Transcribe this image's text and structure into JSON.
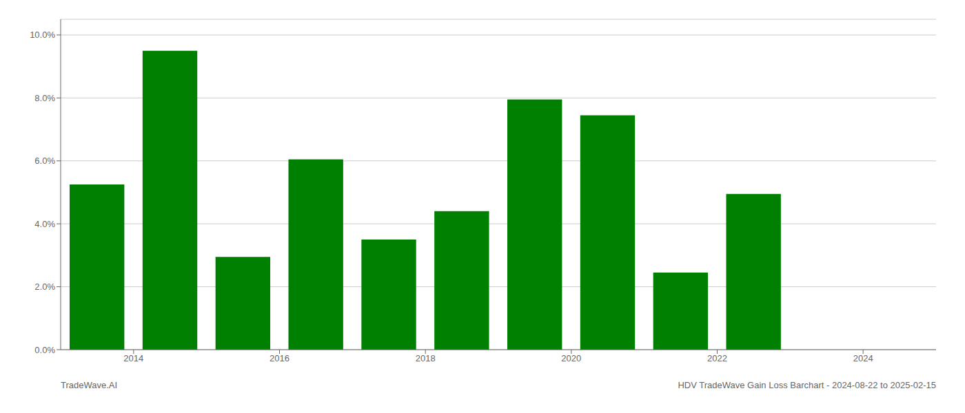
{
  "chart_data": {
    "type": "bar",
    "title": "HDV TradeWave Gain Loss Barchart - 2024-08-22 to 2025-02-15",
    "annotations": [
      "TradeWave.AI"
    ],
    "x": [
      2013.5,
      2014.5,
      2015.5,
      2016.5,
      2017.5,
      2018.5,
      2019.5,
      2020.5,
      2021.5,
      2022.5
    ],
    "values": [
      0.0525,
      0.095,
      0.0295,
      0.0605,
      0.035,
      0.044,
      0.0795,
      0.0745,
      0.0245,
      0.0495
    ],
    "color": "#008000",
    "xlim": [
      2013.0,
      2025.0
    ],
    "xticks": [
      2014,
      2016,
      2018,
      2020,
      2022,
      2024
    ],
    "ylim": [
      0,
      0.105
    ],
    "yticks": [
      {
        "value": 0.0,
        "label": "0.0%"
      },
      {
        "value": 0.02,
        "label": "2.0%"
      },
      {
        "value": 0.04,
        "label": "4.0%"
      },
      {
        "value": 0.06,
        "label": "6.0%"
      },
      {
        "value": 0.08,
        "label": "8.0%"
      },
      {
        "value": 0.1,
        "label": "10.0%"
      }
    ],
    "grid": true
  }
}
